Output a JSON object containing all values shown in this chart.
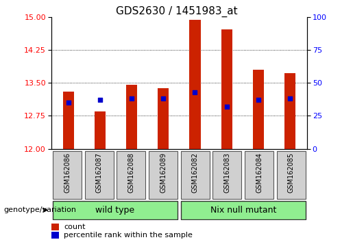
{
  "title": "GDS2630 / 1451983_at",
  "samples": [
    "GSM162086",
    "GSM162087",
    "GSM162088",
    "GSM162089",
    "GSM162082",
    "GSM162083",
    "GSM162084",
    "GSM162085"
  ],
  "count_values": [
    13.3,
    12.85,
    13.45,
    13.38,
    14.94,
    14.72,
    13.8,
    13.72
  ],
  "percentile_values": [
    35,
    37,
    38,
    38,
    43,
    32,
    37,
    38
  ],
  "ylim_left": [
    12,
    15
  ],
  "ylim_right": [
    0,
    100
  ],
  "yticks_left": [
    12,
    12.75,
    13.5,
    14.25,
    15
  ],
  "yticks_right": [
    0,
    25,
    50,
    75,
    100
  ],
  "bar_color": "#CC2200",
  "dot_color": "#0000CC",
  "title_fontsize": 11,
  "tick_fontsize": 8,
  "sample_fontsize": 7,
  "group_fontsize": 9,
  "legend_fontsize": 8,
  "genotype_fontsize": 8,
  "legend_label_count": "count",
  "legend_label_percentile": "percentile rank within the sample",
  "genotype_label": "genotype/variation",
  "wild_type_color": "#90EE90",
  "nix_color": "#90EE90",
  "sample_box_color": "#D0D0D0",
  "bar_width": 0.35,
  "dot_size": 18,
  "group_split": 4
}
